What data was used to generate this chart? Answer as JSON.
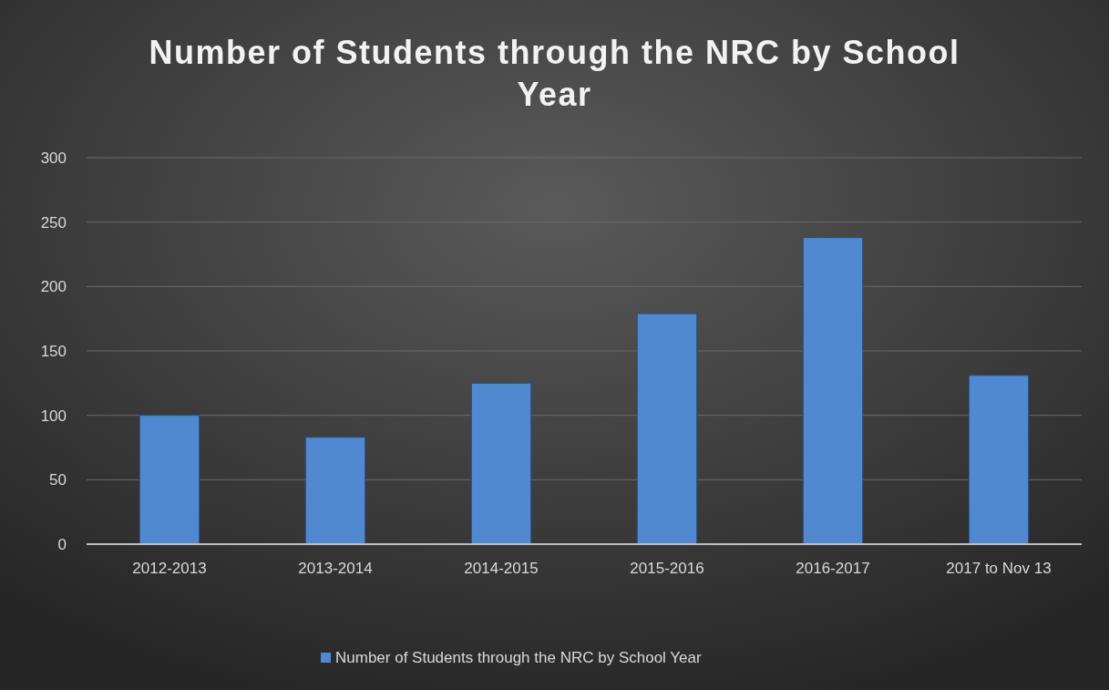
{
  "chart_data": {
    "type": "bar",
    "title": "Number of Students through the NRC by School Year",
    "categories": [
      "2012-2013",
      "2013-2014",
      "2014-2015",
      "2015-2016",
      "2016-2017",
      "2017 to Nov 13"
    ],
    "series": [
      {
        "name": "Number of Students through the NRC by School Year",
        "color": "#5189d1",
        "values": [
          100,
          83,
          125,
          179,
          238,
          131
        ]
      }
    ],
    "ylim": [
      0,
      300
    ],
    "yticks": [
      0,
      50,
      100,
      150,
      200,
      250,
      300
    ],
    "grid": "y",
    "legend": "bottom"
  }
}
